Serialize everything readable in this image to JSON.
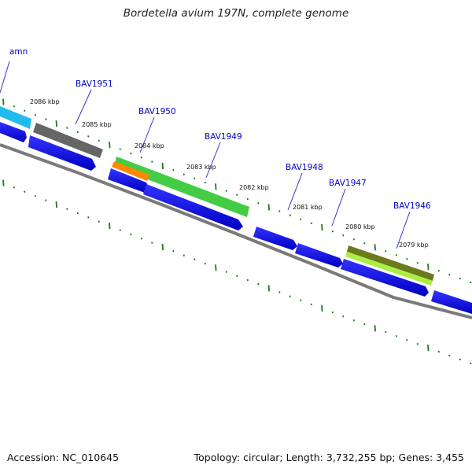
{
  "title": "Bordetella avium 197N, complete genome",
  "footer": {
    "accession": "Accession: NC_010645",
    "summary": "Topology: circular; Length: 3,732,255 bp; Genes: 3,455"
  },
  "kbp_labels": [
    "2086 kbp",
    "2085 kbp",
    "2084 kbp",
    "2083 kbp",
    "2082 kbp",
    "2081 kbp",
    "2080 kbp",
    "2079 kbp"
  ],
  "gene_labels": [
    "amn",
    "BAV1951",
    "BAV1950",
    "BAV1949",
    "BAV1948",
    "BAV1947",
    "BAV1946"
  ],
  "colors": {
    "backbone": "#888888",
    "cds": "#0000ff",
    "tick": "#1b7a1b",
    "label": "#0000c8",
    "cyan_feature": "#22bbee",
    "gray_feature": "#666666",
    "green_feature": "#44cc44",
    "orange_feature": "#ff8800",
    "olive_feature": "#6b7a1a",
    "lime_feature": "#aaee44"
  }
}
